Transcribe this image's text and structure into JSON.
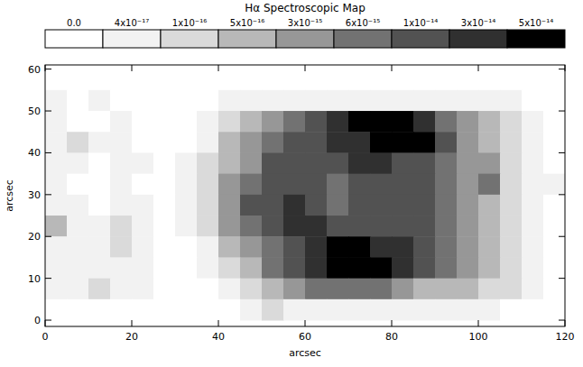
{
  "chart_data": {
    "type": "heatmap",
    "title": "Hα Spectroscopic Map",
    "x_label": "arcsec",
    "y_label": "arcsec",
    "xlim": [
      0,
      120
    ],
    "ylim": [
      -1.5,
      61
    ],
    "xticks": [
      0,
      20,
      40,
      60,
      80,
      100,
      120
    ],
    "yticks": [
      0,
      10,
      20,
      30,
      40,
      50,
      60
    ],
    "grid": false,
    "colorbar_range": [
      0,
      5e-14
    ],
    "colorbar_ticks": [
      {
        "value": 0,
        "label": "0.0"
      },
      {
        "value": 4e-17,
        "label": "4x10⁻¹⁷"
      },
      {
        "value": 1e-16,
        "label": "1x10⁻¹⁶"
      },
      {
        "value": 5e-16,
        "label": "5x10⁻¹⁶"
      },
      {
        "value": 3e-15,
        "label": "3x10⁻¹⁵"
      },
      {
        "value": 6e-15,
        "label": "6x10⁻¹⁵"
      },
      {
        "value": 1e-14,
        "label": "1x10⁻¹⁴"
      },
      {
        "value": 3e-14,
        "label": "3x10⁻¹⁴"
      },
      {
        "value": 5e-14,
        "label": "5x10⁻¹⁴"
      }
    ],
    "colors": [
      "#ffffff",
      "#f2f2f2",
      "#dadada",
      "#b8b8b8",
      "#979797",
      "#727272",
      "#525252",
      "#303030",
      "#000000"
    ],
    "x": [
      2.5,
      7.5,
      12.5,
      17.5,
      22.5,
      27.5,
      32.5,
      37.5,
      42.5,
      47.5,
      52.5,
      57.5,
      62.5,
      67.5,
      72.5,
      77.5,
      82.5,
      87.5,
      92.5,
      97.5,
      102.5,
      107.5,
      112.5,
      117.5
    ],
    "y": [
      57.5,
      52.5,
      47.5,
      42.5,
      37.5,
      32.5,
      27.5,
      22.5,
      17.5,
      12.5,
      7.5,
      2.5
    ],
    "cells": [
      [
        0,
        0,
        0,
        0,
        0,
        0,
        0,
        0,
        0,
        0,
        0,
        0,
        0,
        0,
        0,
        0,
        0,
        0,
        0,
        0,
        0,
        0,
        0,
        0
      ],
      [
        4e-17,
        0,
        4e-17,
        0,
        0,
        0,
        0,
        0,
        4e-17,
        4e-17,
        4e-17,
        4e-17,
        4e-17,
        4e-17,
        4e-17,
        4e-17,
        4e-17,
        4e-17,
        4e-17,
        4e-17,
        4e-17,
        4e-17,
        0,
        0
      ],
      [
        4e-17,
        0,
        0,
        4e-17,
        0,
        0,
        0,
        4e-17,
        1e-16,
        5e-16,
        3e-15,
        6e-15,
        1e-14,
        3e-14,
        5e-14,
        5e-14,
        5e-14,
        3e-14,
        6e-15,
        3e-15,
        5e-16,
        1e-16,
        4e-17,
        0
      ],
      [
        4e-17,
        1e-16,
        4e-17,
        4e-17,
        0,
        0,
        0,
        4e-17,
        5e-16,
        3e-15,
        6e-15,
        1e-14,
        1e-14,
        3e-14,
        3e-14,
        5e-14,
        5e-14,
        5e-14,
        1e-14,
        3e-15,
        5e-16,
        1e-16,
        4e-17,
        0
      ],
      [
        4e-17,
        4e-17,
        0,
        4e-17,
        4e-17,
        0,
        4e-17,
        1e-16,
        5e-16,
        3e-15,
        1e-14,
        1e-14,
        1e-14,
        1e-14,
        3e-14,
        3e-14,
        1e-14,
        1e-14,
        6e-15,
        3e-15,
        3e-15,
        1e-16,
        4e-17,
        0
      ],
      [
        4e-17,
        0,
        0,
        4e-17,
        0,
        0,
        4e-17,
        1e-16,
        3e-15,
        6e-15,
        1e-14,
        1e-14,
        1e-14,
        6e-15,
        1e-14,
        1e-14,
        1e-14,
        1e-14,
        6e-15,
        3e-15,
        6e-15,
        1e-16,
        4e-17,
        4e-17
      ],
      [
        4e-17,
        4e-17,
        0,
        4e-17,
        4e-17,
        0,
        4e-17,
        1e-16,
        3e-15,
        1e-14,
        1e-14,
        3e-14,
        1e-14,
        6e-15,
        1e-14,
        1e-14,
        1e-14,
        1e-14,
        6e-15,
        3e-15,
        5e-16,
        1e-16,
        4e-17,
        0
      ],
      [
        5e-16,
        4e-17,
        4e-17,
        1e-16,
        4e-17,
        0,
        4e-17,
        1e-16,
        3e-15,
        6e-15,
        1e-14,
        3e-14,
        3e-14,
        1e-14,
        1e-14,
        1e-14,
        1e-14,
        1e-14,
        6e-15,
        3e-15,
        5e-16,
        1e-16,
        4e-17,
        0
      ],
      [
        4e-17,
        4e-17,
        4e-17,
        1e-16,
        4e-17,
        0,
        0,
        4e-17,
        5e-16,
        3e-15,
        6e-15,
        1e-14,
        3e-14,
        5e-14,
        5e-14,
        3e-14,
        3e-14,
        1e-14,
        6e-15,
        3e-15,
        5e-16,
        1e-16,
        4e-17,
        0
      ],
      [
        4e-17,
        4e-17,
        4e-17,
        4e-17,
        4e-17,
        0,
        0,
        4e-17,
        1e-16,
        5e-16,
        6e-15,
        1e-14,
        3e-14,
        5e-14,
        5e-14,
        5e-14,
        3e-14,
        1e-14,
        6e-15,
        3e-15,
        5e-16,
        1e-16,
        4e-17,
        0
      ],
      [
        4e-17,
        4e-17,
        1e-16,
        4e-17,
        4e-17,
        0,
        0,
        0,
        4e-17,
        1e-16,
        5e-16,
        3e-15,
        6e-15,
        6e-15,
        6e-15,
        6e-15,
        3e-15,
        5e-16,
        5e-16,
        5e-16,
        1e-16,
        1e-16,
        4e-17,
        0
      ],
      [
        0,
        0,
        0,
        0,
        0,
        0,
        0,
        0,
        0,
        4e-17,
        1e-16,
        4e-17,
        4e-17,
        4e-17,
        4e-17,
        4e-17,
        4e-17,
        4e-17,
        4e-17,
        4e-17,
        4e-17,
        0,
        0,
        0
      ]
    ]
  }
}
